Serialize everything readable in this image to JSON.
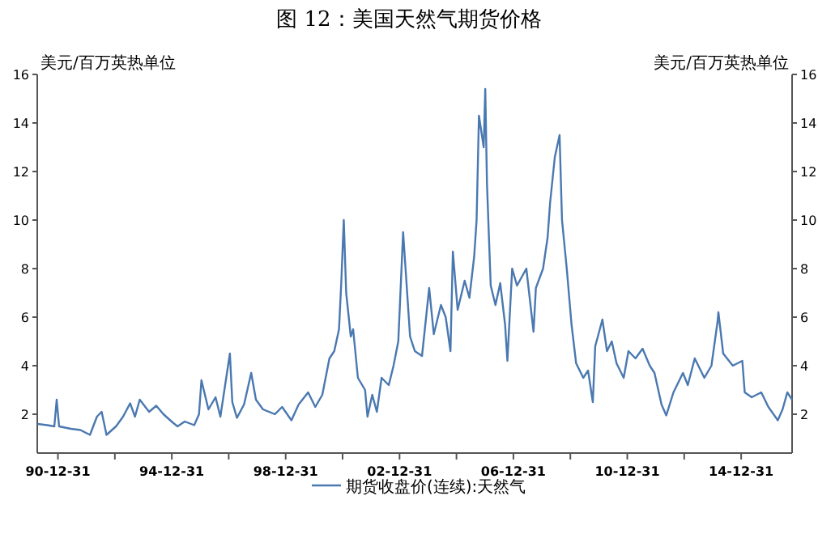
{
  "chart_data": {
    "type": "line",
    "title": "图 12：美国天然气期货价格",
    "ylabel": "美元/百万英热单位",
    "y2label": "美元/百万英热单位",
    "xlim": [
      "1990-04-10",
      "2016-10-15"
    ],
    "ylim": [
      0.4,
      16
    ],
    "y2lim": [
      0.4,
      16
    ],
    "xticks": [
      {
        "value": "1990-12-31",
        "label": "90-12-31"
      },
      {
        "value": "1992-12-31",
        "label": null
      },
      {
        "value": "1994-12-31",
        "label": "94-12-31"
      },
      {
        "value": "1996-12-31",
        "label": null
      },
      {
        "value": "1998-12-31",
        "label": "98-12-31"
      },
      {
        "value": "2000-12-31",
        "label": null
      },
      {
        "value": "2002-12-31",
        "label": "02-12-31"
      },
      {
        "value": "2004-12-31",
        "label": null
      },
      {
        "value": "2006-12-31",
        "label": "06-12-31"
      },
      {
        "value": "2008-12-31",
        "label": null
      },
      {
        "value": "2010-12-31",
        "label": "10-12-31"
      },
      {
        "value": "2012-12-31",
        "label": null
      },
      {
        "value": "2014-12-31",
        "label": "14-12-31"
      }
    ],
    "yticks": [
      2,
      4,
      6,
      8,
      10,
      12,
      14,
      16
    ],
    "y2ticks": [
      2,
      4,
      6,
      8,
      10,
      12,
      14,
      16
    ],
    "grid": false,
    "legend": "bottom",
    "marker": "none",
    "line_style": "solid",
    "series": [
      {
        "name": "期货收盘价(连续):天然气",
        "color": "#4a78b0",
        "x": [
          "1990-04-15",
          "1990-08-15",
          "1990-11-15",
          "1990-12-15",
          "1991-01-15",
          "1991-06-15",
          "1991-10-15",
          "1991-12-15",
          "1992-02-15",
          "1992-05-15",
          "1992-07-15",
          "1992-09-15",
          "1993-01-15",
          "1993-04-15",
          "1993-07-15",
          "1993-09-15",
          "1993-11-15",
          "1994-03-15",
          "1994-06-15",
          "1994-09-15",
          "1995-01-15",
          "1995-03-15",
          "1995-06-15",
          "1995-10-15",
          "1995-12-15",
          "1996-01-15",
          "1996-04-15",
          "1996-07-15",
          "1996-09-15",
          "1996-11-15",
          "1997-01-15",
          "1997-02-15",
          "1997-04-15",
          "1997-07-15",
          "1997-10-15",
          "1997-12-15",
          "1998-03-15",
          "1998-08-15",
          "1998-11-15",
          "1999-03-15",
          "1999-06-15",
          "1999-10-15",
          "2000-01-15",
          "2000-04-15",
          "2000-07-15",
          "2000-09-15",
          "2000-11-15",
          "2000-12-15",
          "2001-01-15",
          "2001-02-15",
          "2001-04-15",
          "2001-05-15",
          "2001-07-15",
          "2001-10-15",
          "2001-11-15",
          "2002-01-15",
          "2002-03-15",
          "2002-05-15",
          "2002-08-15",
          "2002-10-15",
          "2002-12-15",
          "2003-02-15",
          "2003-05-15",
          "2003-07-15",
          "2003-10-15",
          "2004-01-15",
          "2004-03-15",
          "2004-06-15",
          "2004-08-15",
          "2004-10-15",
          "2004-11-15",
          "2005-01-15",
          "2005-04-15",
          "2005-06-15",
          "2005-08-15",
          "2005-09-15",
          "2005-10-15",
          "2005-12-15",
          "2006-01-04",
          "2006-01-26",
          "2006-03-15",
          "2006-05-15",
          "2006-07-15",
          "2006-09-15",
          "2006-10-15",
          "2006-12-15",
          "2007-02-15",
          "2007-06-15",
          "2007-09-15",
          "2007-10-15",
          "2008-01-15",
          "2008-03-15",
          "2008-04-15",
          "2008-06-15",
          "2008-08-15",
          "2008-09-15",
          "2008-11-15",
          "2009-01-15",
          "2009-03-15",
          "2009-06-15",
          "2009-08-15",
          "2009-10-15",
          "2009-11-15",
          "2010-02-15",
          "2010-04-15",
          "2010-06-15",
          "2010-08-15",
          "2010-11-15",
          "2011-01-15",
          "2011-04-15",
          "2011-07-15",
          "2011-10-15",
          "2011-12-15",
          "2012-03-15",
          "2012-05-15",
          "2012-08-15",
          "2012-12-15",
          "2013-02-15",
          "2013-05-15",
          "2013-09-15",
          "2013-12-15",
          "2014-03-03",
          "2014-03-14",
          "2014-05-15",
          "2014-09-15",
          "2015-01-15",
          "2015-02-15",
          "2015-05-15",
          "2015-09-15",
          "2015-12-15",
          "2016-04-15",
          "2016-06-15",
          "2016-08-15",
          "2016-10-15"
        ],
        "values": [
          1.6,
          1.55,
          1.5,
          2.6,
          1.5,
          1.4,
          1.35,
          1.25,
          1.15,
          1.9,
          2.1,
          1.15,
          1.5,
          1.9,
          2.45,
          1.9,
          2.6,
          2.1,
          2.35,
          2.0,
          1.65,
          1.5,
          1.7,
          1.55,
          2.0,
          3.4,
          2.2,
          2.7,
          1.9,
          3.2,
          4.5,
          2.5,
          1.85,
          2.4,
          3.7,
          2.6,
          2.2,
          2.0,
          2.3,
          1.75,
          2.4,
          2.9,
          2.3,
          2.8,
          4.3,
          4.6,
          5.5,
          7.5,
          10.0,
          7.0,
          5.2,
          5.5,
          3.5,
          3.0,
          1.9,
          2.8,
          2.1,
          3.5,
          3.2,
          4.0,
          5.0,
          9.5,
          5.2,
          4.6,
          4.4,
          7.2,
          5.3,
          6.5,
          6.0,
          4.6,
          8.7,
          6.3,
          7.5,
          6.8,
          8.5,
          10.0,
          14.3,
          13.0,
          15.4,
          11.5,
          7.3,
          6.5,
          7.4,
          5.7,
          4.2,
          8.0,
          7.3,
          8.0,
          5.4,
          7.2,
          8.0,
          9.3,
          10.7,
          12.6,
          13.5,
          10.0,
          8.0,
          5.7,
          4.1,
          3.5,
          3.8,
          2.5,
          4.8,
          5.9,
          4.6,
          5.0,
          4.1,
          3.5,
          4.6,
          4.3,
          4.7,
          4.0,
          3.7,
          2.4,
          1.95,
          2.9,
          3.7,
          3.2,
          4.3,
          3.5,
          4.0,
          5.8,
          6.2,
          4.5,
          4.0,
          4.2,
          2.9,
          2.7,
          2.9,
          2.3,
          1.75,
          2.2,
          2.9,
          2.6
        ]
      }
    ]
  }
}
